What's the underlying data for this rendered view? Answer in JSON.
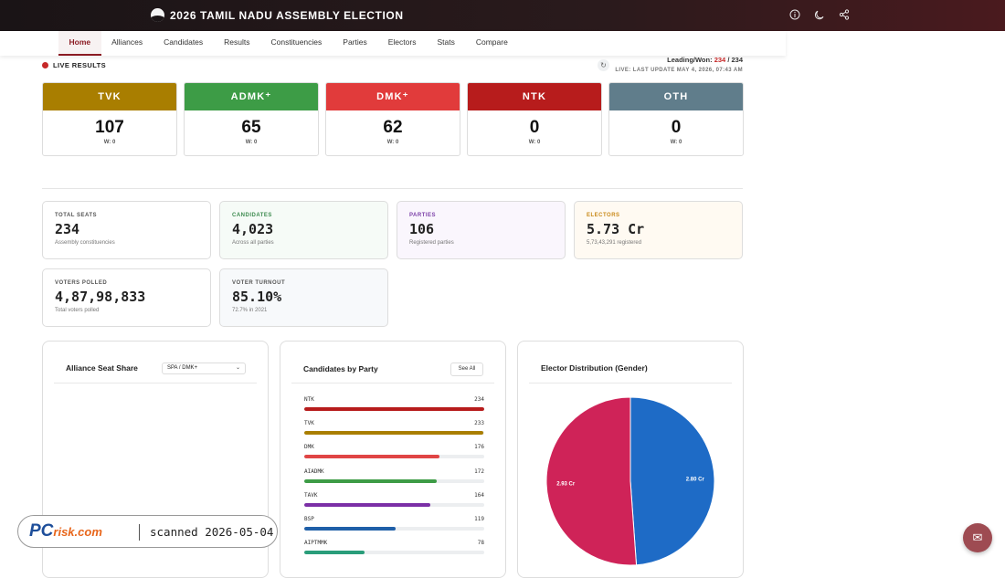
{
  "header": {
    "title": "2026 TAMIL NADU ASSEMBLY ELECTION",
    "icons": [
      "info-icon",
      "moon-icon",
      "share-icon"
    ]
  },
  "nav": {
    "items": [
      "Home",
      "Alliances",
      "Candidates",
      "Results",
      "Constituencies",
      "Parties",
      "Electors",
      "Stats",
      "Compare"
    ],
    "active": "Home"
  },
  "live": {
    "label": "LIVE RESULTS",
    "leading_label": "Leading/Won:",
    "leading_count": "234",
    "leading_total": "/ 234",
    "update": "LIVE: LAST UPDATE MAY 4, 2026, 07:43 AM"
  },
  "parties": [
    {
      "name": "TVK",
      "seats": "107",
      "won": "W: 0",
      "color": "#a97e00"
    },
    {
      "name": "ADMK⁺",
      "seats": "65",
      "won": "W: 0",
      "color": "#3d9c46"
    },
    {
      "name": "DMK⁺",
      "seats": "62",
      "won": "W: 0",
      "color": "#e13b3b"
    },
    {
      "name": "NTK",
      "seats": "0",
      "won": "W: 0",
      "color": "#b71c1c"
    },
    {
      "name": "OTH",
      "seats": "0",
      "won": "W: 0",
      "color": "#607d8b"
    }
  ],
  "stats": [
    {
      "label": "TOTAL SEATS",
      "value": "234",
      "sub": "Assembly constituencies",
      "label_color": "#555555",
      "bg": "#ffffff"
    },
    {
      "label": "CANDIDATES",
      "value": "4,023",
      "sub": "Across all parties",
      "label_color": "#3d8b4f",
      "bg": "#f6fbf7"
    },
    {
      "label": "PARTIES",
      "value": "106",
      "sub": "Registered parties",
      "label_color": "#7b3fa8",
      "bg": "#faf6fd"
    },
    {
      "label": "ELECTORS",
      "value": "5.73 Cr",
      "sub": "5,73,43,291 registered",
      "label_color": "#c98a1a",
      "bg": "#fffaf2"
    },
    {
      "label": "VOTERS POLLED",
      "value": "4,87,98,833",
      "sub": "Total voters polled",
      "label_color": "#555555",
      "bg": "#ffffff"
    },
    {
      "label": "VOTER TURNOUT",
      "value": "85.10%",
      "sub": "72.7% in 2021",
      "label_color": "#555555",
      "bg": "#f7f9fb"
    }
  ],
  "alliance_panel": {
    "title": "Alliance Seat Share",
    "select_value": "SPA / DMK+"
  },
  "candidates_panel": {
    "title": "Candidates by Party",
    "see_all": "See All",
    "max": 234,
    "bars": [
      {
        "party": "NTK",
        "count": 234,
        "color": "#b71c1c"
      },
      {
        "party": "TVK",
        "count": 233,
        "color": "#a97e00"
      },
      {
        "party": "DMK",
        "count": 176,
        "color": "#e04545"
      },
      {
        "party": "AIADMK",
        "count": 172,
        "color": "#3d9c46"
      },
      {
        "party": "TAVK",
        "count": 164,
        "color": "#7b2fa6"
      },
      {
        "party": "BSP",
        "count": 119,
        "color": "#1f5fa8"
      },
      {
        "party": "AIPTMMK",
        "count": 78,
        "color": "#2a9d7a"
      }
    ]
  },
  "gender_panel": {
    "title": "Elector Distribution (Gender)",
    "chart_data": {
      "type": "pie",
      "slices": [
        {
          "label": "2.80 Cr",
          "value": 2.8,
          "color": "#1e6bc6"
        },
        {
          "label": "2.93 Cr",
          "value": 2.93,
          "color": "#cf2358"
        }
      ]
    }
  },
  "watermark": {
    "logo_main": "PC",
    "logo_rest": "risk.com",
    "text": "scanned 2026-05-04"
  },
  "fab": {
    "icon": "mail-icon"
  }
}
